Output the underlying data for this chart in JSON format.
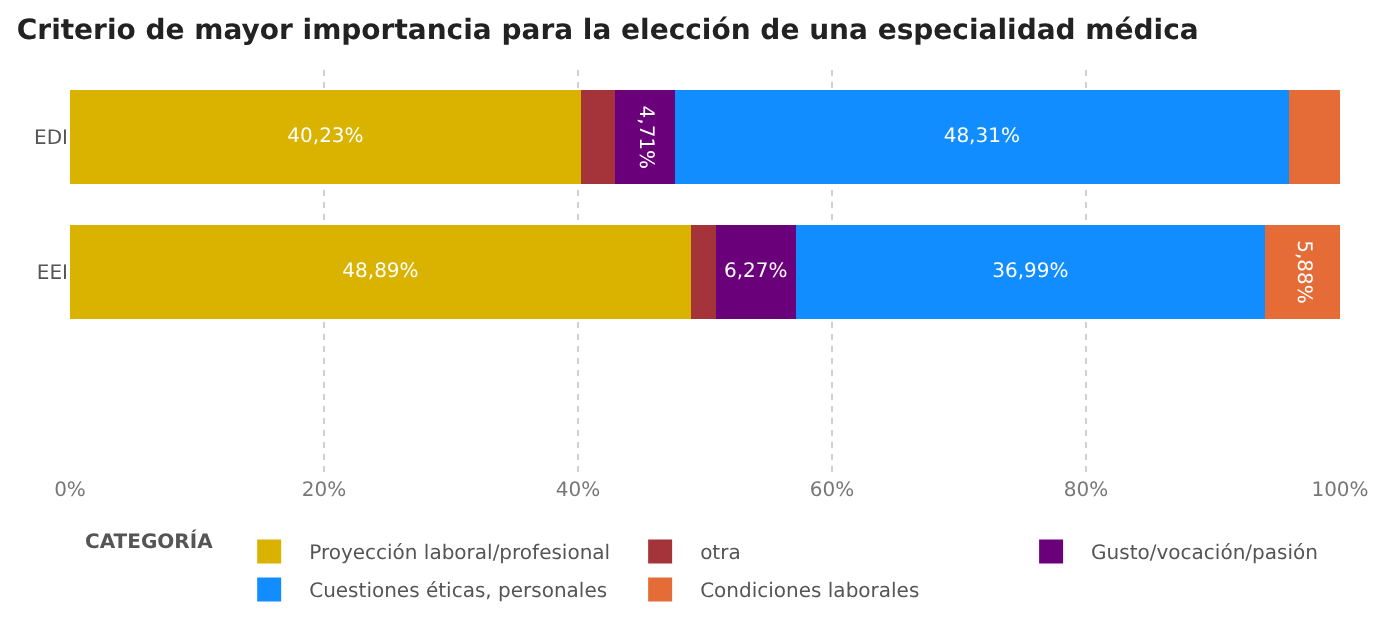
{
  "chart_data": {
    "type": "bar",
    "orientation": "horizontal",
    "stacked": true,
    "title": "Criterio de mayor importancia para la elección de una especialidad médica",
    "legend_title": "CATEGORÍA",
    "categories": [
      "EDI",
      "EEI"
    ],
    "series": [
      {
        "name": "Proyección laboral/profesional",
        "color": "#d9b300",
        "values": [
          40.23,
          48.89
        ],
        "value_labels": [
          "40,23%",
          "48,89%"
        ]
      },
      {
        "name": "otra",
        "color": "#a4343a",
        "values": [
          2.7,
          1.97
        ],
        "value_labels": [
          null,
          null
        ]
      },
      {
        "name": "Gusto/vocación/pasión",
        "color": "#6b007b",
        "values": [
          4.71,
          6.27
        ],
        "value_labels": [
          "4,71%",
          "6,27%"
        ]
      },
      {
        "name": "Cuestiones éticas, personales",
        "color": "#118dff",
        "values": [
          48.31,
          36.99
        ],
        "value_labels": [
          "48,31%",
          "36,99%"
        ]
      },
      {
        "name": "Condiciones laborales",
        "color": "#e66c37",
        "values": [
          4.05,
          5.88
        ],
        "value_labels": [
          null,
          "5,88%"
        ]
      }
    ],
    "xlim": [
      0,
      100
    ],
    "xticks": [
      {
        "value": 0,
        "label": "0%"
      },
      {
        "value": 20,
        "label": "20%"
      },
      {
        "value": 40,
        "label": "40%"
      },
      {
        "value": 60,
        "label": "60%"
      },
      {
        "value": 80,
        "label": "80%"
      },
      {
        "value": 100,
        "label": "100%"
      }
    ],
    "grid": "x",
    "legend": "bottom"
  }
}
